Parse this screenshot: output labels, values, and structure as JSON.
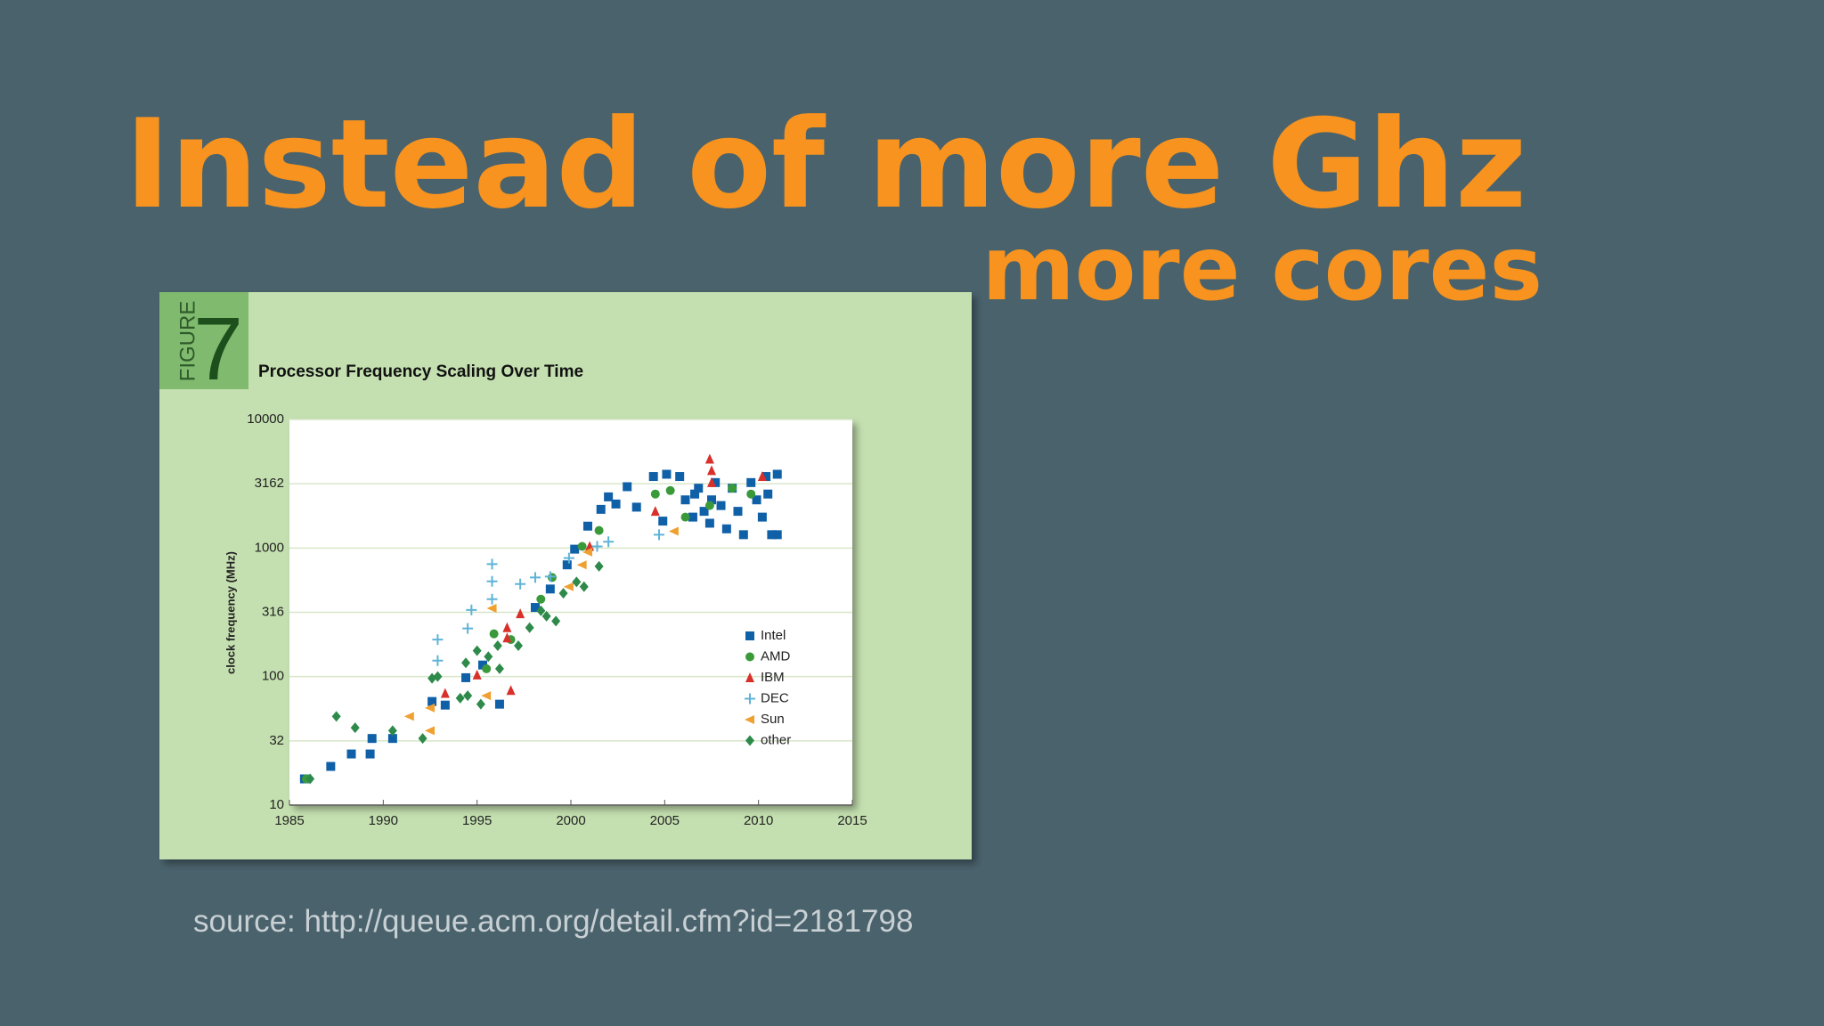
{
  "slide": {
    "title": "Instead of more Ghz",
    "subtitle": "more cores",
    "source": "source: http://queue.acm.org/detail.cfm?id=2181798"
  },
  "figure": {
    "label": "FIGURE",
    "number": "7"
  },
  "chart_data": {
    "type": "scatter",
    "title": "Processor Frequency Scaling Over Time",
    "y_label": "clock frequency (MHz)",
    "xlim": [
      1985,
      2015
    ],
    "xticks": [
      1985,
      1990,
      1995,
      2000,
      2005,
      2010,
      2015
    ],
    "ylim": [
      10,
      10000
    ],
    "y_scale": "log",
    "yticks": [
      10,
      {
        "value": 31.62,
        "label": "32"
      },
      100,
      {
        "value": 316.2,
        "label": "316"
      },
      1000,
      {
        "value": 3162.3,
        "label": "3162"
      },
      10000
    ],
    "grid": true,
    "legend": "lower right",
    "series": [
      {
        "name": "Intel",
        "color": "#1060a8",
        "marker": "square",
        "x": [
          1985.8,
          1987.2,
          1988.3,
          1989.3,
          1989.4,
          1990.5,
          1992.6,
          1993.3,
          1994.4,
          1995.3,
          1996.2,
          1998.1,
          1998.9,
          1999.8,
          2000.2,
          2000.9,
          2001.6,
          2002.0,
          2002.4,
          2003.0,
          2003.5,
          2004.4,
          2005.1,
          2004.9,
          2005.8,
          2006.1,
          2006.5,
          2006.8,
          2007.1,
          2007.4,
          2007.7,
          2008.0,
          2008.3,
          2008.6,
          2008.9,
          2009.2,
          2009.6,
          2009.9,
          2010.2,
          2010.5,
          2010.7,
          2011.0,
          2011.0,
          2010.4,
          2006.6,
          2007.5
        ],
        "values": [
          16,
          20,
          25,
          25,
          33,
          33,
          64,
          60,
          98,
          123,
          61,
          345,
          480,
          740,
          980,
          1480,
          2000,
          2500,
          2200,
          3000,
          2080,
          3600,
          3750,
          1620,
          3600,
          2370,
          1740,
          2920,
          1930,
          1560,
          3230,
          2140,
          1410,
          2920,
          1930,
          1270,
          3230,
          2370,
          1740,
          2630,
          1270,
          1270,
          3750,
          3600,
          2630,
          2370
        ]
      },
      {
        "name": "AMD",
        "color": "#3a9a3a",
        "marker": "circle",
        "x": [
          1985.9,
          2000.6,
          2001.5,
          2004.5,
          2005.3,
          2006.1,
          2007.4,
          2008.6,
          2009.6,
          1999.0,
          1998.4,
          1996.8,
          1995.9,
          1995.5
        ],
        "values": [
          16,
          1030,
          1370,
          2630,
          2800,
          1740,
          2140,
          2920,
          2630,
          590,
          400,
          194,
          215,
          115
        ]
      },
      {
        "name": "IBM",
        "color": "#d8302a",
        "marker": "triangle",
        "x": [
          1993.3,
          1995.0,
          1996.6,
          1996.8,
          1997.3,
          2001.0,
          2004.5,
          2007.4,
          2007.5,
          2007.5,
          2010.2,
          1996.6
        ],
        "values": [
          74,
          103,
          240,
          78,
          308,
          1030,
          1930,
          4920,
          4000,
          3230,
          3600,
          200
        ]
      },
      {
        "name": "DEC",
        "color": "#5fb3d8",
        "marker": "plus",
        "x": [
          1992.9,
          1992.9,
          1994.7,
          1994.5,
          1995.8,
          1995.8,
          1995.8,
          1997.3,
          1998.1,
          1998.9,
          1999.9,
          2001.4,
          2002.0,
          2004.7
        ],
        "values": [
          194,
          133,
          330,
          237,
          750,
          550,
          400,
          525,
          590,
          600,
          835,
          1030,
          1120,
          1270
        ]
      },
      {
        "name": "Sun",
        "color": "#f0a030",
        "marker": "triangle-left",
        "x": [
          1991.4,
          1992.5,
          1992.5,
          1995.5,
          1995.8,
          1999.9,
          2000.6,
          2000.9,
          2005.5
        ],
        "values": [
          49,
          57,
          38,
          71,
          340,
          500,
          740,
          930,
          1350
        ]
      },
      {
        "name": "other",
        "color": "#2e8a4a",
        "marker": "diamond",
        "x": [
          1986.1,
          1987.5,
          1988.5,
          1990.5,
          1992.1,
          1992.9,
          1992.6,
          1994.1,
          1994.4,
          1995.0,
          1995.6,
          1996.1,
          1996.2,
          1997.2,
          1997.8,
          1998.4,
          1998.7,
          1999.2,
          1999.6,
          2000.3,
          2000.7,
          2001.5,
          1995.2,
          1994.5
        ],
        "values": [
          16,
          49,
          40,
          38,
          33,
          100,
          97,
          68,
          128,
          159,
          143,
          174,
          115,
          174,
          240,
          325,
          295,
          270,
          445,
          545,
          500,
          720,
          61,
          71
        ]
      }
    ]
  }
}
